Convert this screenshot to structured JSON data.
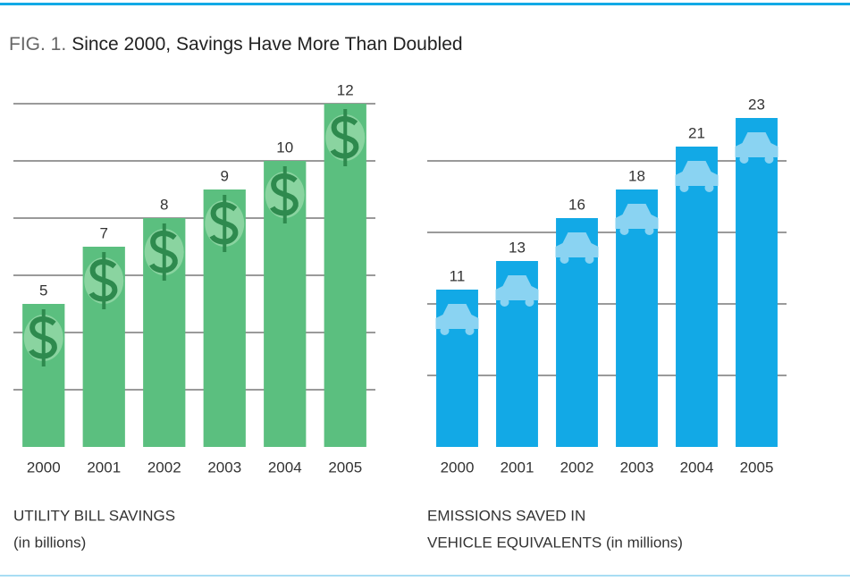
{
  "header": {
    "label": "FIG. 1.",
    "title": "Since 2000, Savings Have More Than Doubled"
  },
  "chart_data": [
    {
      "type": "bar",
      "categories": [
        "2000",
        "2001",
        "2002",
        "2003",
        "2004",
        "2005"
      ],
      "values": [
        5,
        7,
        8,
        9,
        10,
        12
      ],
      "color": "#5bbf7f",
      "ylim": [
        0,
        12.5
      ],
      "yticks": [
        2,
        4,
        6,
        8,
        10,
        12
      ],
      "grid": true,
      "xlabel": [
        "UTILITY BILL SAVINGS",
        "(in billions)"
      ]
    },
    {
      "type": "bar",
      "categories": [
        "2000",
        "2001",
        "2002",
        "2003",
        "2004",
        "2005"
      ],
      "values": [
        11,
        13,
        16,
        18,
        21,
        23
      ],
      "color": "#12a9e6",
      "ylim": [
        0,
        25
      ],
      "yticks": [
        5,
        10,
        15,
        20
      ],
      "grid": true,
      "xlabel": [
        "EMISSIONS SAVED IN",
        "VEHICLE EQUIVALENTS (in millions)"
      ]
    }
  ]
}
